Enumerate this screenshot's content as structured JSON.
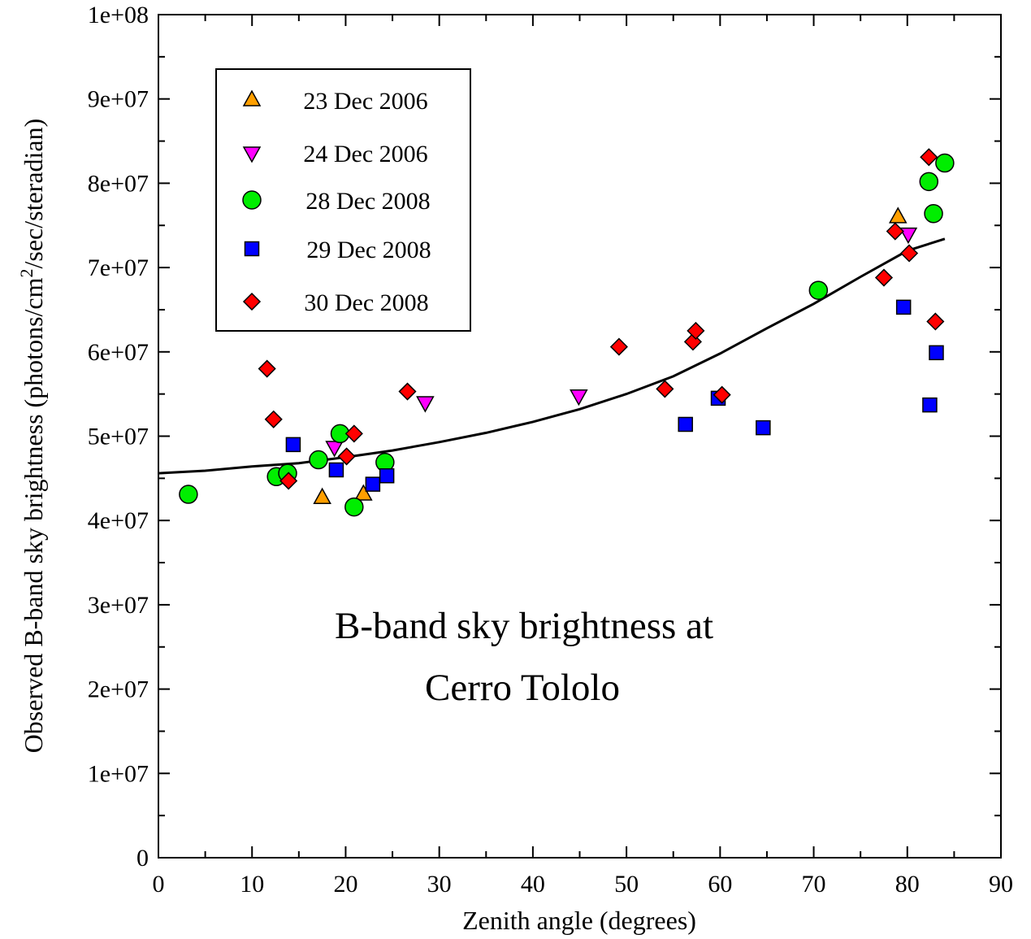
{
  "chart_data": {
    "type": "scatter",
    "title": "",
    "annotation": [
      "B-band sky brightness at",
      "Cerro Tololo"
    ],
    "xlabel": "Zenith angle (degrees)",
    "ylabel_main": "Observed B-band sky brightness (photons/cm",
    "ylabel_sup": "2",
    "ylabel_tail": "/sec/steradian)",
    "xlim": [
      0,
      90
    ],
    "ylim": [
      0,
      100000000
    ],
    "xticks": [
      0,
      10,
      20,
      30,
      40,
      50,
      60,
      70,
      80,
      90
    ],
    "xtick_labels": [
      "0",
      "10",
      "20",
      "30",
      "40",
      "50",
      "60",
      "70",
      "80",
      "90"
    ],
    "yticks": [
      0,
      10000000,
      20000000,
      30000000,
      40000000,
      50000000,
      60000000,
      70000000,
      80000000,
      90000000,
      100000000
    ],
    "ytick_labels": [
      "0",
      "1e+07",
      "2e+07",
      "3e+07",
      "4e+07",
      "5e+07",
      "6e+07",
      "7e+07",
      "8e+07",
      "9e+07",
      "1e+08"
    ],
    "grid": false,
    "legend_position": "top-left",
    "series": [
      {
        "name": "23 Dec 2006",
        "marker": "triangle-up",
        "color": "#ff9f00",
        "x": [
          17.5,
          21.9,
          79.0
        ],
        "y": [
          42700000,
          43100000,
          76000000
        ]
      },
      {
        "name": "24 Dec 2006",
        "marker": "triangle-down",
        "color": "#ff00ff",
        "x": [
          18.8,
          28.5,
          44.9,
          80.1
        ],
        "y": [
          48700000,
          54000000,
          54800000,
          74000000
        ]
      },
      {
        "name": "28 Dec 2008",
        "marker": "circle",
        "color": "#00ee00",
        "x": [
          3.2,
          12.6,
          13.8,
          17.1,
          19.4,
          20.9,
          24.2,
          70.5,
          82.3,
          82.8,
          84.0
        ],
        "y": [
          43100000,
          45200000,
          45600000,
          47200000,
          50300000,
          41600000,
          46900000,
          67300000,
          80200000,
          76400000,
          82400000
        ]
      },
      {
        "name": "29 Dec 2008",
        "marker": "square",
        "color": "#0000ff",
        "x": [
          14.4,
          19.0,
          22.9,
          24.4,
          56.3,
          59.8,
          64.6,
          79.6,
          82.4,
          83.1
        ],
        "y": [
          49000000,
          46000000,
          44300000,
          45300000,
          51400000,
          54500000,
          51000000,
          65300000,
          53700000,
          59900000
        ]
      },
      {
        "name": "30 Dec 2008",
        "marker": "diamond",
        "color": "#ff0000",
        "x": [
          11.6,
          12.3,
          13.9,
          20.1,
          20.9,
          26.6,
          49.2,
          54.1,
          57.1,
          57.4,
          60.2,
          77.5,
          78.7,
          80.2,
          82.3,
          83.0
        ],
        "y": [
          58000000,
          52000000,
          44700000,
          47600000,
          50300000,
          55300000,
          60600000,
          55600000,
          61200000,
          62500000,
          54900000,
          68800000,
          74300000,
          71700000,
          83100000,
          63600000
        ]
      }
    ],
    "fit_curve": {
      "color": "#000000",
      "x": [
        0,
        5,
        10,
        15,
        20,
        25,
        30,
        35,
        40,
        45,
        50,
        55,
        60,
        65,
        70,
        75,
        80,
        84
      ],
      "y": [
        45600000,
        45900000,
        46400000,
        46800000,
        47500000,
        48300000,
        49300000,
        50400000,
        51700000,
        53200000,
        55000000,
        57100000,
        59800000,
        62800000,
        65700000,
        68900000,
        72000000,
        73400000
      ]
    }
  }
}
